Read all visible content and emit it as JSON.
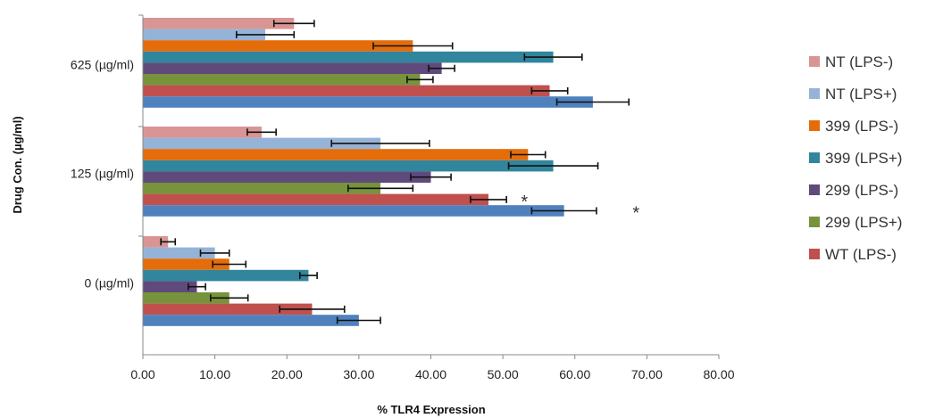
{
  "chart_data": {
    "type": "bar",
    "orientation": "horizontal",
    "xlabel": "% TLR4 Expression",
    "ylabel": "Drug Con. (µg/ml)",
    "xlim": [
      0,
      80
    ],
    "x_ticks": [
      "0.00",
      "10.00",
      "20.00",
      "30.00",
      "40.00",
      "50.00",
      "60.00",
      "70.00",
      "80.00"
    ],
    "grid": false,
    "legend_position": "right",
    "categories": [
      "0 (µg/ml)",
      "125 (µg/ml)",
      "625 (µg/ml)"
    ],
    "series": [
      {
        "name": "NT (LPS-)",
        "color": "#d99594",
        "values": [
          3.5,
          16.5,
          21.0
        ],
        "errors": [
          1.0,
          2.0,
          2.8
        ]
      },
      {
        "name": "NT (LPS+)",
        "color": "#95b3d7",
        "values": [
          10.0,
          33.0,
          17.0
        ],
        "errors": [
          2.0,
          6.8,
          4.0
        ]
      },
      {
        "name": "399 (LPS-)",
        "color": "#e46c0a",
        "values": [
          12.0,
          53.5,
          37.5
        ],
        "errors": [
          2.3,
          2.4,
          5.5
        ]
      },
      {
        "name": "399 (LPS+)",
        "color": "#31859c",
        "values": [
          23.0,
          57.0,
          57.0
        ],
        "errors": [
          1.2,
          6.2,
          4.0
        ]
      },
      {
        "name": "299 (LPS-)",
        "color": "#604a7b",
        "values": [
          7.5,
          40.0,
          41.5
        ],
        "errors": [
          1.2,
          2.8,
          1.8
        ]
      },
      {
        "name": "299 (LPS+)",
        "color": "#77933c",
        "values": [
          12.0,
          33.0,
          38.5
        ],
        "errors": [
          2.6,
          4.5,
          1.8
        ]
      },
      {
        "name": "WT (LPS-)",
        "color": "#c0504d",
        "values": [
          23.5,
          48.0,
          56.5
        ],
        "errors": [
          4.5,
          2.5,
          2.5
        ]
      },
      {
        "name": "WT (LPS+)",
        "color": "#4f81bd",
        "values": [
          30.0,
          58.5,
          62.5
        ],
        "errors": [
          3.0,
          4.5,
          5.0
        ]
      }
    ],
    "annotations": [
      {
        "text": "*",
        "category": "125 (µg/ml)",
        "series": "WT (LPS-)",
        "x": 53.0
      },
      {
        "text": "*",
        "category": "125 (µg/ml)",
        "series": "WT (LPS+)",
        "x": 68.5
      }
    ]
  }
}
